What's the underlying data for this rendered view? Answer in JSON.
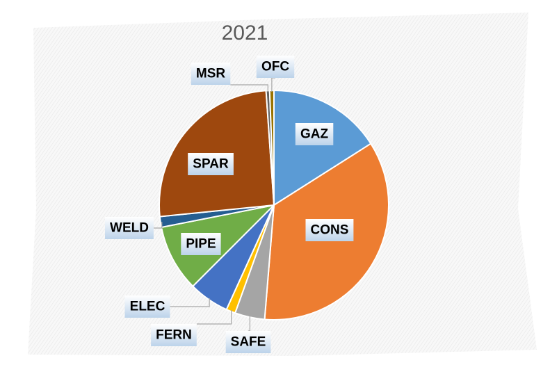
{
  "chart_data": {
    "type": "pie",
    "title": "2021",
    "start_angle_deg": 0,
    "direction": "clockwise",
    "legend": "none",
    "slices": [
      {
        "label": "GAZ",
        "value": 16.0,
        "color": "#5B9BD5"
      },
      {
        "label": "CONS",
        "value": 35.3,
        "color": "#ED7D31"
      },
      {
        "label": "SAFE",
        "value": 4.2,
        "color": "#A5A5A5"
      },
      {
        "label": "FERN",
        "value": 1.3,
        "color": "#FFC000"
      },
      {
        "label": "ELEC",
        "value": 5.7,
        "color": "#4472C4"
      },
      {
        "label": "PIPE",
        "value": 9.4,
        "color": "#70AD47"
      },
      {
        "label": "WELD",
        "value": 1.5,
        "color": "#255E91"
      },
      {
        "label": "SPAR",
        "value": 25.5,
        "color": "#9E480E"
      },
      {
        "label": "MSR",
        "value": 0.5,
        "color": "#636363"
      },
      {
        "label": "OFC",
        "value": 0.6,
        "color": "#997300"
      }
    ]
  }
}
